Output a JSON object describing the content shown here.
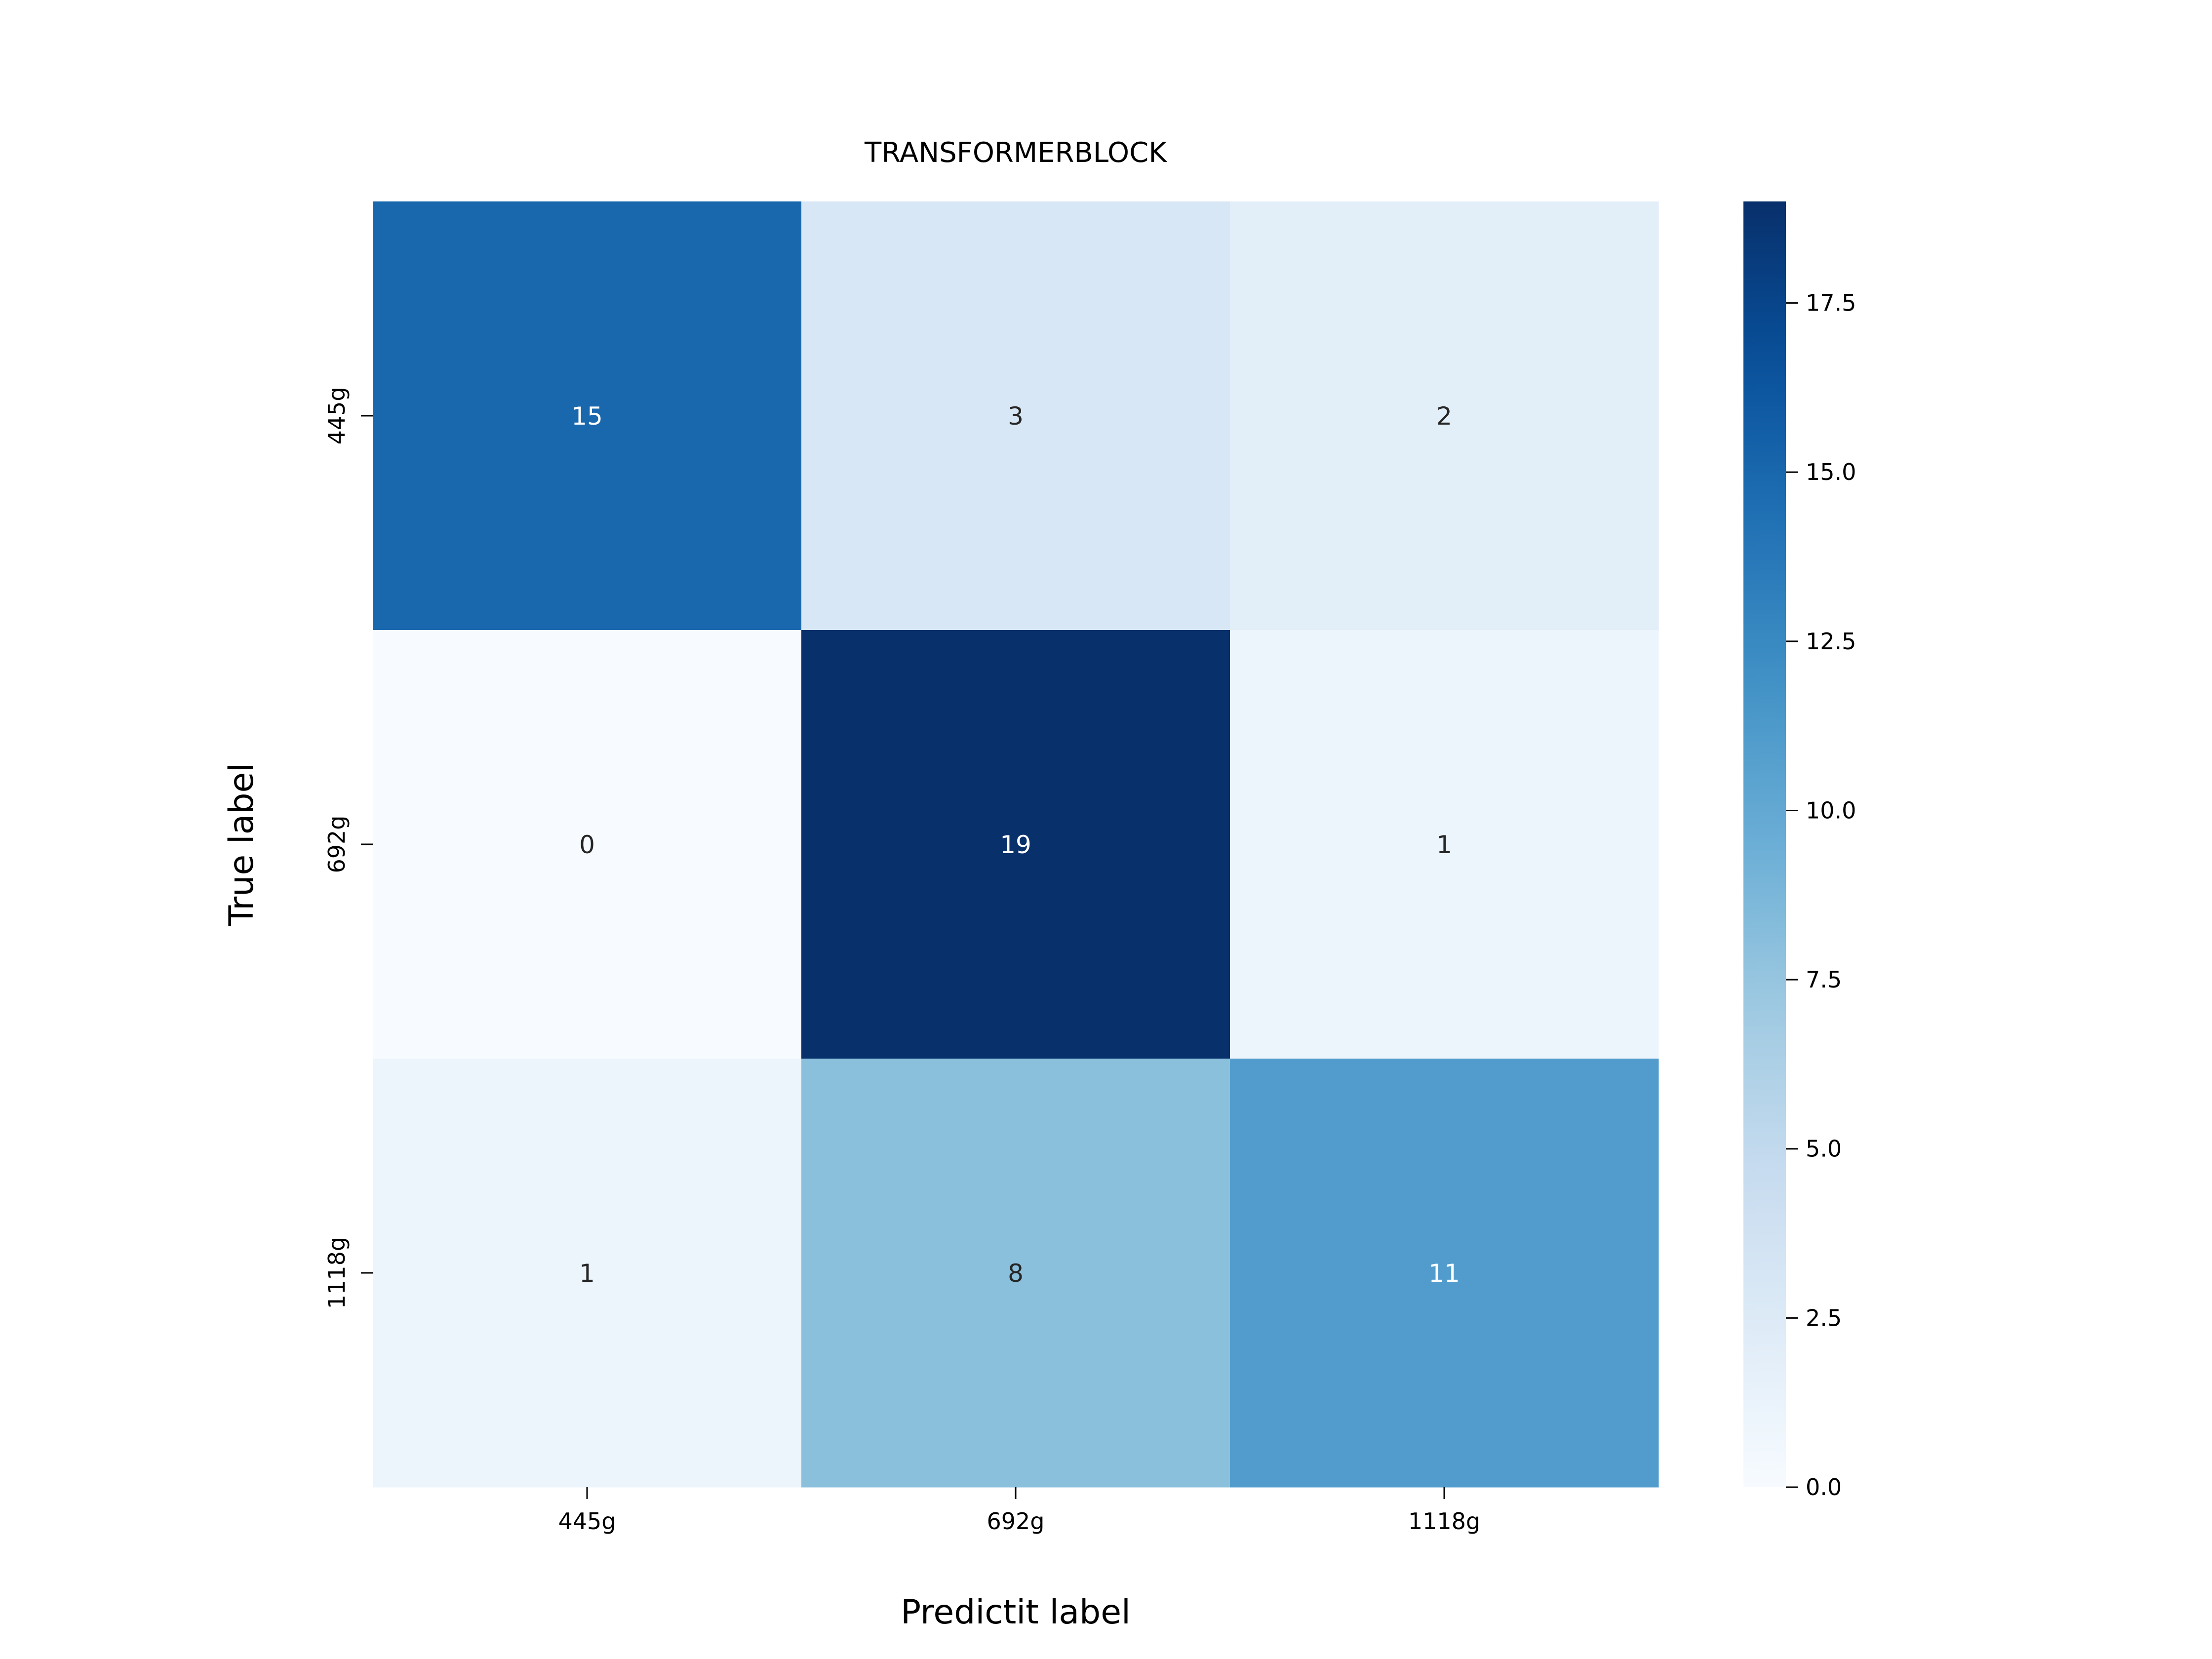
{
  "chart_data": {
    "type": "heatmap",
    "title": "TRANSFORMERBLOCK",
    "xlabel": "Predictit label",
    "ylabel": "True label",
    "x_categories": [
      "445g",
      "692g",
      "1118g"
    ],
    "y_categories": [
      "445g",
      "692g",
      "1118g"
    ],
    "values": [
      [
        15,
        3,
        2
      ],
      [
        0,
        19,
        1
      ],
      [
        1,
        8,
        11
      ]
    ],
    "colormap": "Blues",
    "color_range": [
      0,
      19
    ],
    "colorbar_ticks": [
      "0.0",
      "2.5",
      "5.0",
      "7.5",
      "10.0",
      "12.5",
      "15.0",
      "17.5"
    ],
    "colors": {
      "text_dark": "#262626",
      "text_light": "#ffffff"
    }
  }
}
